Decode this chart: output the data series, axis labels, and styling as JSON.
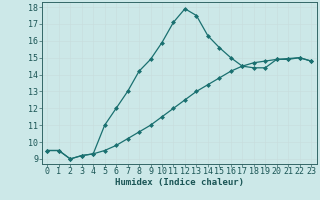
{
  "xlabel": "Humidex (Indice chaleur)",
  "bg_color": "#cce8e8",
  "grid_color": "#c8dede",
  "line_color": "#1a7070",
  "spine_color": "#336666",
  "tick_color": "#1a5555",
  "xlim": [
    -0.5,
    23.5
  ],
  "ylim": [
    8.7,
    18.3
  ],
  "xticks": [
    0,
    1,
    2,
    3,
    4,
    5,
    6,
    7,
    8,
    9,
    10,
    11,
    12,
    13,
    14,
    15,
    16,
    17,
    18,
    19,
    20,
    21,
    22,
    23
  ],
  "yticks": [
    9,
    10,
    11,
    12,
    13,
    14,
    15,
    16,
    17,
    18
  ],
  "line1_x": [
    0,
    1,
    2,
    3,
    4,
    5,
    6,
    7,
    8,
    9,
    10,
    11,
    12,
    13,
    14,
    15,
    16,
    17,
    18,
    19,
    20,
    21,
    22,
    23
  ],
  "line1_y": [
    9.5,
    9.5,
    9.0,
    9.2,
    9.3,
    11.0,
    12.0,
    13.0,
    14.2,
    14.9,
    15.9,
    17.1,
    17.9,
    17.5,
    16.3,
    15.6,
    15.0,
    14.5,
    14.4,
    14.4,
    14.9,
    14.9,
    15.0,
    14.8
  ],
  "line2_x": [
    0,
    1,
    2,
    3,
    4,
    5,
    6,
    7,
    8,
    9,
    10,
    11,
    12,
    13,
    14,
    15,
    16,
    17,
    18,
    19,
    20,
    21,
    22,
    23
  ],
  "line2_y": [
    9.5,
    9.5,
    9.0,
    9.2,
    9.3,
    9.5,
    9.8,
    10.2,
    10.6,
    11.0,
    11.5,
    12.0,
    12.5,
    13.0,
    13.4,
    13.8,
    14.2,
    14.5,
    14.7,
    14.8,
    14.9,
    14.95,
    15.0,
    14.8
  ],
  "marker": "D",
  "marker_size": 2.0,
  "line_width": 0.9,
  "tick_fontsize": 6.0,
  "xlabel_fontsize": 6.5
}
